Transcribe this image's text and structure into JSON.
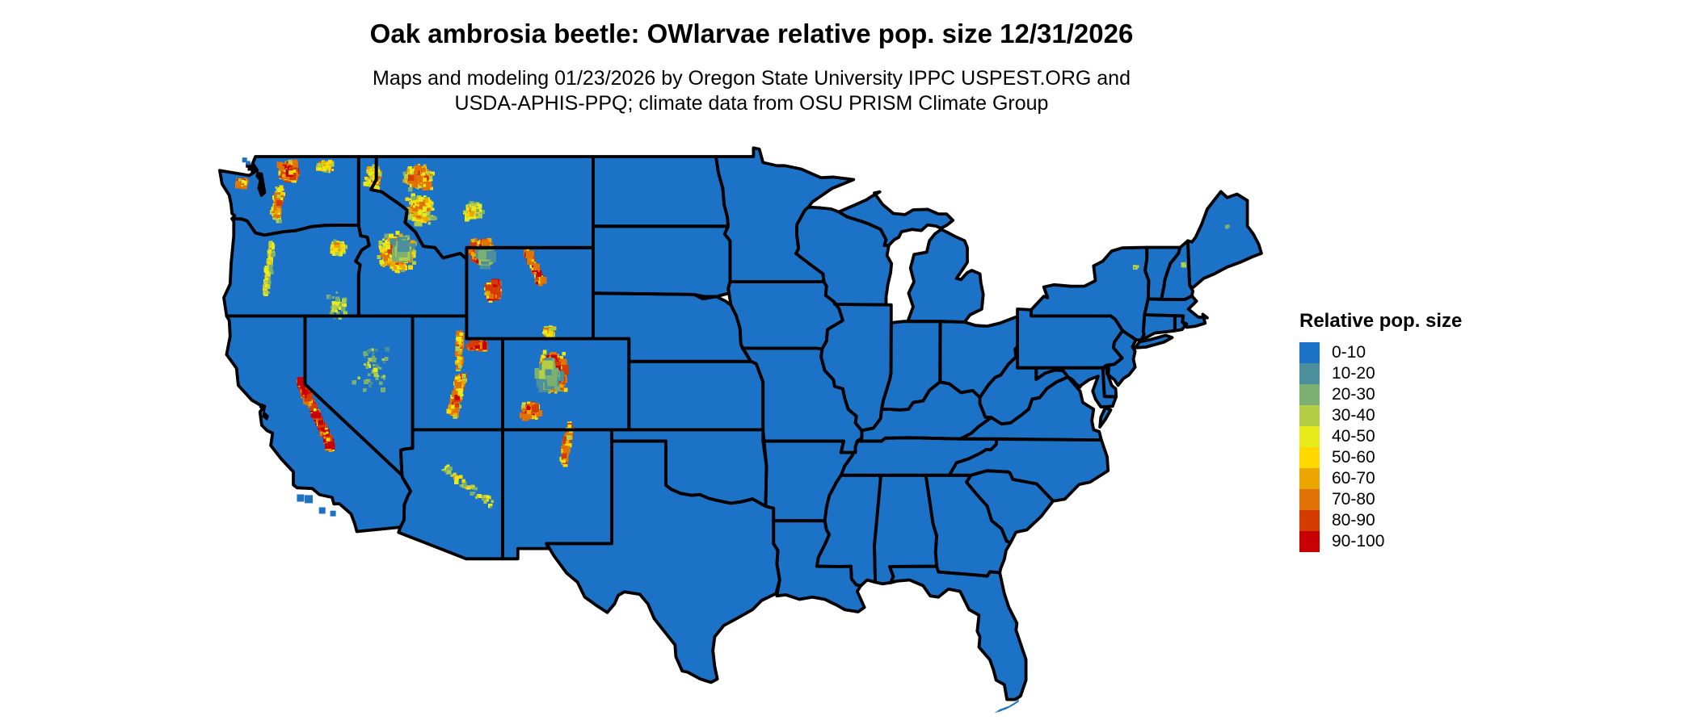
{
  "title": "Oak ambrosia beetle: OWlarvae relative pop. size 12/31/2026",
  "subtitle_line1": "Maps and modeling 01/23/2026 by Oregon State University IPPC USPEST.ORG and",
  "subtitle_line2": "USDA-APHIS-PPQ; climate data from OSU PRISM Climate Group",
  "legend": {
    "title": "Relative pop. size",
    "items": [
      {
        "label": "0-10",
        "color": "#1C72C6"
      },
      {
        "label": "10-20",
        "color": "#4A8F9B"
      },
      {
        "label": "20-30",
        "color": "#7BB070"
      },
      {
        "label": "30-40",
        "color": "#B4CF45"
      },
      {
        "label": "40-50",
        "color": "#E7EB1C"
      },
      {
        "label": "50-60",
        "color": "#FFD900"
      },
      {
        "label": "60-70",
        "color": "#ECA702"
      },
      {
        "label": "70-80",
        "color": "#E07303"
      },
      {
        "label": "80-90",
        "color": "#D53C03"
      },
      {
        "label": "90-100",
        "color": "#C90002"
      }
    ]
  },
  "map": {
    "region": "Contiguous United States",
    "base_color": "#1C72C6",
    "border_color": "#000000",
    "background": "#FFFFFF",
    "hotspots": [
      {
        "name": "north-cascades",
        "lon": -120.9,
        "lat": 48.35,
        "sx": 0.6,
        "sy": 0.5,
        "n": 380,
        "heat": 1.05
      },
      {
        "name": "wa-south-cascades",
        "lon": -121.4,
        "lat": 47.5,
        "lon2": -121.6,
        "lat2": 46.3,
        "sx": 0.3,
        "n": 130,
        "heat": 0.75
      },
      {
        "name": "okanogan-highlands",
        "lon": -118.9,
        "lat": 48.55,
        "sx": 0.55,
        "sy": 0.3,
        "n": 70,
        "heat": 0.7
      },
      {
        "name": "olympic-mountains",
        "lon": -123.5,
        "lat": 47.85,
        "sx": 0.3,
        "sy": 0.22,
        "n": 80,
        "heat": 0.95
      },
      {
        "name": "oregon-cascades",
        "lon": -121.8,
        "lat": 45.2,
        "lon2": -122.2,
        "lat2": 43.0,
        "sx": 0.18,
        "n": 160,
        "heat": 0.55
      },
      {
        "name": "blue-wallowa-mountains",
        "lon": -118.2,
        "lat": 45.0,
        "sx": 0.6,
        "sy": 0.4,
        "n": 80,
        "heat": 0.6
      },
      {
        "name": "se-oregon-sparse",
        "lon": -118.3,
        "lat": 42.4,
        "sx": 0.9,
        "sy": 0.7,
        "n": 40,
        "heat": 0.4
      },
      {
        "name": "idaho-panhandle",
        "lon": -116.2,
        "lat": 48.1,
        "sx": 0.55,
        "sy": 0.65,
        "n": 130,
        "heat": 0.75
      },
      {
        "name": "central-idaho",
        "lon": -114.9,
        "lat": 44.8,
        "sx": 1.15,
        "sy": 0.95,
        "n": 430,
        "heat": 0.8
      },
      {
        "name": "central-idaho-basins",
        "lon": -114.6,
        "lat": 44.9,
        "sx": 0.6,
        "sy": 0.5,
        "n": 70,
        "heat": 0.3,
        "size": 2.4
      },
      {
        "name": "bitterroot-west-montana",
        "lon": -113.6,
        "lat": 46.7,
        "sx": 0.95,
        "sy": 0.75,
        "n": 260,
        "heat": 0.7
      },
      {
        "name": "glacier-nw-montana",
        "lon": -113.7,
        "lat": 48.1,
        "sx": 0.95,
        "sy": 0.6,
        "n": 230,
        "heat": 0.85
      },
      {
        "name": "central-montana-ranges",
        "lon": -110.7,
        "lat": 46.6,
        "sx": 0.7,
        "sy": 0.45,
        "n": 100,
        "heat": 0.6
      },
      {
        "name": "absaroka-yellowstone",
        "lon": -110.2,
        "lat": 44.8,
        "sx": 0.75,
        "sy": 0.65,
        "n": 340,
        "heat": 1.15
      },
      {
        "name": "absaroka-fringe",
        "lon": -110.0,
        "lat": 44.6,
        "sx": 0.5,
        "sy": 0.45,
        "n": 45,
        "heat": 0.3,
        "size": 2.2
      },
      {
        "name": "wind-river-range",
        "lon": -109.6,
        "lat": 43.1,
        "sx": 0.45,
        "sy": 0.5,
        "n": 180,
        "heat": 1.15
      },
      {
        "name": "bighorn-mountains",
        "lon": -107.7,
        "lat": 44.8,
        "lon2": -106.9,
        "lat2": 43.5,
        "sx": 0.22,
        "n": 110,
        "heat": 1.0
      },
      {
        "name": "medicine-bow-sierra-madre",
        "lon": -106.5,
        "lat": 41.3,
        "sx": 0.4,
        "sy": 0.3,
        "n": 55,
        "heat": 0.7
      },
      {
        "name": "uinta-mountains",
        "lon": -110.4,
        "lat": 40.7,
        "sx": 0.7,
        "sy": 0.2,
        "n": 140,
        "heat": 1.1
      },
      {
        "name": "wasatch-range",
        "lon": -111.4,
        "lat": 41.2,
        "lon2": -111.5,
        "lat2": 39.7,
        "sx": 0.16,
        "n": 90,
        "heat": 0.75
      },
      {
        "name": "utah-high-plateaus",
        "lon": -111.3,
        "lat": 39.3,
        "lon2": -111.8,
        "lat2": 37.7,
        "sx": 0.3,
        "n": 130,
        "heat": 0.9
      },
      {
        "name": "colorado-rockies",
        "lon": -106.3,
        "lat": 39.5,
        "sx": 0.95,
        "sy": 1.0,
        "n": 520,
        "heat": 1.1
      },
      {
        "name": "colorado-rockies-fringe",
        "lon": -106.5,
        "lat": 39.3,
        "sx": 0.7,
        "sy": 0.9,
        "n": 70,
        "heat": 0.3,
        "size": 2.3
      },
      {
        "name": "san-juan-mountains",
        "lon": -107.5,
        "lat": 37.8,
        "sx": 0.55,
        "sy": 0.4,
        "n": 160,
        "heat": 1.0
      },
      {
        "name": "sangre-de-cristo",
        "lon": -105.3,
        "lat": 37.2,
        "lon2": -105.7,
        "lat2": 35.5,
        "sx": 0.22,
        "n": 80,
        "heat": 0.8
      },
      {
        "name": "sierra-nevada",
        "lon": -120.3,
        "lat": 39.2,
        "lon2": -118.5,
        "lat2": 36.2,
        "sx": 0.18,
        "n": 300,
        "heat": 1.15
      },
      {
        "name": "nevada-ranges-sparse",
        "lon": -116.3,
        "lat": 39.6,
        "sx": 1.5,
        "sy": 1.4,
        "n": 45,
        "heat": 0.35
      },
      {
        "name": "mogollon-rim-az",
        "lon": -112.3,
        "lat": 35.3,
        "lon2": -109.7,
        "lat2": 33.8,
        "sx": 0.3,
        "n": 55,
        "heat": 0.5
      },
      {
        "name": "adirondacks",
        "lon": -73.95,
        "lat": 44.15,
        "sx": 0.15,
        "sy": 0.1,
        "n": 5,
        "heat": 0.35
      },
      {
        "name": "white-mountains-nh",
        "lon": -71.3,
        "lat": 44.25,
        "sx": 0.12,
        "sy": 0.09,
        "n": 7,
        "heat": 0.45
      },
      {
        "name": "katahdin-me",
        "lon": -68.9,
        "lat": 45.9,
        "sx": 0.08,
        "sy": 0.06,
        "n": 3,
        "heat": 0.35
      }
    ]
  }
}
